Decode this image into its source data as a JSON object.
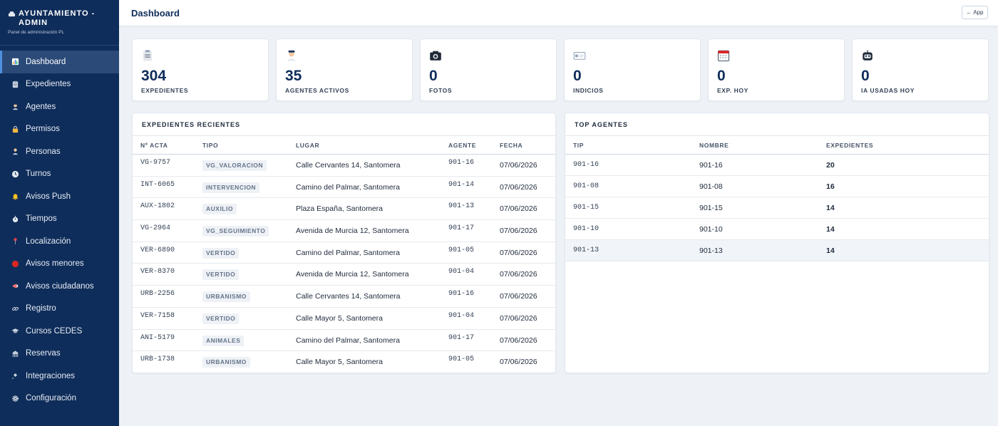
{
  "sidebar": {
    "title": "AYUNTAMIENTO - ADMIN",
    "subtitle": "Panel de administración PL",
    "items": [
      {
        "label": "Dashboard",
        "icon": "chart-icon",
        "color": "#f59e0b",
        "active": true
      },
      {
        "label": "Expedientes",
        "icon": "clipboard-icon",
        "color": "#cbd5e1"
      },
      {
        "label": "Agentes",
        "icon": "officer-icon",
        "color": "#cbd5e1"
      },
      {
        "label": "Permisos",
        "icon": "lock-icon",
        "color": "#f5b942"
      },
      {
        "label": "Personas",
        "icon": "person-icon",
        "color": "#cbd5e1"
      },
      {
        "label": "Turnos",
        "icon": "clock-icon",
        "color": "#e2e8f0"
      },
      {
        "label": "Avisos Push",
        "icon": "bell-icon",
        "color": "#fbbf24"
      },
      {
        "label": "Tiempos",
        "icon": "stopwatch-icon",
        "color": "#e2e8f0"
      },
      {
        "label": "Localización",
        "icon": "pin-icon",
        "color": "#ef4444"
      },
      {
        "label": "Avisos menores",
        "icon": "red-dot-icon",
        "color": "#dc2626"
      },
      {
        "label": "Avisos ciudadanos",
        "icon": "megaphone-icon",
        "color": "#f87171"
      },
      {
        "label": "Registro",
        "icon": "link-icon",
        "color": "#cbd5e1"
      },
      {
        "label": "Cursos CEDES",
        "icon": "graduation-cap-icon",
        "color": "#cbd5e1"
      },
      {
        "label": "Reservas",
        "icon": "building-icon",
        "color": "#cbd5e1"
      },
      {
        "label": "Integraciones",
        "icon": "plug-icon",
        "color": "#cbd5e1"
      },
      {
        "label": "Configuración",
        "icon": "gear-icon",
        "color": "#e2e8f0"
      }
    ]
  },
  "header": {
    "title": "Dashboard",
    "app_button": "← App"
  },
  "stats": [
    {
      "value": "304",
      "label": "EXPEDIENTES",
      "icon": "clipboard-icon"
    },
    {
      "value": "35",
      "label": "AGENTES ACTIVOS",
      "icon": "officer-icon"
    },
    {
      "value": "0",
      "label": "FOTOS",
      "icon": "camera-icon"
    },
    {
      "value": "0",
      "label": "INDICIOS",
      "icon": "id-card-icon"
    },
    {
      "value": "0",
      "label": "EXP. HOY",
      "icon": "calendar-icon"
    },
    {
      "value": "0",
      "label": "IA USADAS HOY",
      "icon": "robot-icon"
    }
  ],
  "recent": {
    "title": "EXPEDIENTES RECIENTES",
    "columns": [
      "Nº ACTA",
      "TIPO",
      "LUGAR",
      "AGENTE",
      "FECHA"
    ],
    "rows": [
      {
        "acta": "VG-9757",
        "tipo": "VG_VALORACION",
        "lugar": "Calle Cervantes 14, Santomera",
        "agente": "901-16",
        "fecha": "07/06/2026"
      },
      {
        "acta": "INT-6065",
        "tipo": "INTERVENCION",
        "lugar": "Camino del Palmar, Santomera",
        "agente": "901-14",
        "fecha": "07/06/2026"
      },
      {
        "acta": "AUX-1802",
        "tipo": "AUXILIO",
        "lugar": "Plaza España, Santomera",
        "agente": "901-13",
        "fecha": "07/06/2026"
      },
      {
        "acta": "VG-2964",
        "tipo": "VG_SEGUIMIENTO",
        "lugar": "Avenida de Murcia 12, Santomera",
        "agente": "901-17",
        "fecha": "07/06/2026"
      },
      {
        "acta": "VER-6890",
        "tipo": "VERTIDO",
        "lugar": "Camino del Palmar, Santomera",
        "agente": "901-05",
        "fecha": "07/06/2026"
      },
      {
        "acta": "VER-8370",
        "tipo": "VERTIDO",
        "lugar": "Avenida de Murcia 12, Santomera",
        "agente": "901-04",
        "fecha": "07/06/2026"
      },
      {
        "acta": "URB-2256",
        "tipo": "URBANISMO",
        "lugar": "Calle Cervantes 14, Santomera",
        "agente": "901-16",
        "fecha": "07/06/2026"
      },
      {
        "acta": "VER-7158",
        "tipo": "VERTIDO",
        "lugar": "Calle Mayor 5, Santomera",
        "agente": "901-04",
        "fecha": "07/06/2026"
      },
      {
        "acta": "ANI-5179",
        "tipo": "ANIMALES",
        "lugar": "Camino del Palmar, Santomera",
        "agente": "901-17",
        "fecha": "07/06/2026"
      },
      {
        "acta": "URB-1738",
        "tipo": "URBANISMO",
        "lugar": "Calle Mayor 5, Santomera",
        "agente": "901-05",
        "fecha": "07/06/2026"
      }
    ]
  },
  "top": {
    "title": "TOP AGENTES",
    "columns": [
      "TIP",
      "NOMBRE",
      "EXPEDIENTES"
    ],
    "rows": [
      {
        "tip": "901-16",
        "nombre": "901-16",
        "exp": "20"
      },
      {
        "tip": "901-08",
        "nombre": "901-08",
        "exp": "16"
      },
      {
        "tip": "901-15",
        "nombre": "901-15",
        "exp": "14"
      },
      {
        "tip": "901-10",
        "nombre": "901-10",
        "exp": "14"
      },
      {
        "tip": "901-13",
        "nombre": "901-13",
        "exp": "14"
      }
    ]
  }
}
